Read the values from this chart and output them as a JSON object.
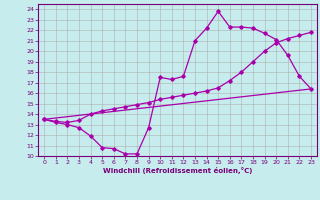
{
  "xlabel": "Windchill (Refroidissement éolien,°C)",
  "bg_color": "#c6ecee",
  "grid_color": "#b0b0b0",
  "line_color": "#aa00aa",
  "xlim": [
    -0.5,
    23.5
  ],
  "ylim": [
    10,
    24.5
  ],
  "xticks": [
    0,
    1,
    2,
    3,
    4,
    5,
    6,
    7,
    8,
    9,
    10,
    11,
    12,
    13,
    14,
    15,
    16,
    17,
    18,
    19,
    20,
    21,
    22,
    23
  ],
  "yticks": [
    10,
    11,
    12,
    13,
    14,
    15,
    16,
    17,
    18,
    19,
    20,
    21,
    22,
    23,
    24
  ],
  "line1_x": [
    0,
    1,
    2,
    3,
    4,
    5,
    6,
    7,
    8,
    9,
    10,
    11,
    12,
    13,
    14,
    15,
    16,
    17,
    18,
    19,
    20,
    21,
    22,
    23
  ],
  "line1_y": [
    13.5,
    13.2,
    13.0,
    12.7,
    11.9,
    10.8,
    10.7,
    10.2,
    10.2,
    12.7,
    17.5,
    17.3,
    17.6,
    21.0,
    22.2,
    23.8,
    22.3,
    22.3,
    22.2,
    21.7,
    21.1,
    19.6,
    17.6,
    16.4
  ],
  "line2_x": [
    0,
    23
  ],
  "line2_y": [
    13.5,
    16.4
  ],
  "line3_x": [
    0,
    1,
    2,
    3,
    4,
    5,
    6,
    7,
    8,
    9,
    10,
    11,
    12,
    13,
    14,
    15,
    16,
    17,
    18,
    19,
    20,
    21,
    22,
    23
  ],
  "line3_y": [
    13.5,
    13.3,
    13.2,
    13.4,
    14.0,
    14.3,
    14.5,
    14.7,
    14.9,
    15.1,
    15.4,
    15.6,
    15.8,
    16.0,
    16.2,
    16.5,
    17.2,
    18.0,
    19.0,
    20.0,
    20.8,
    21.2,
    21.5,
    21.8
  ]
}
